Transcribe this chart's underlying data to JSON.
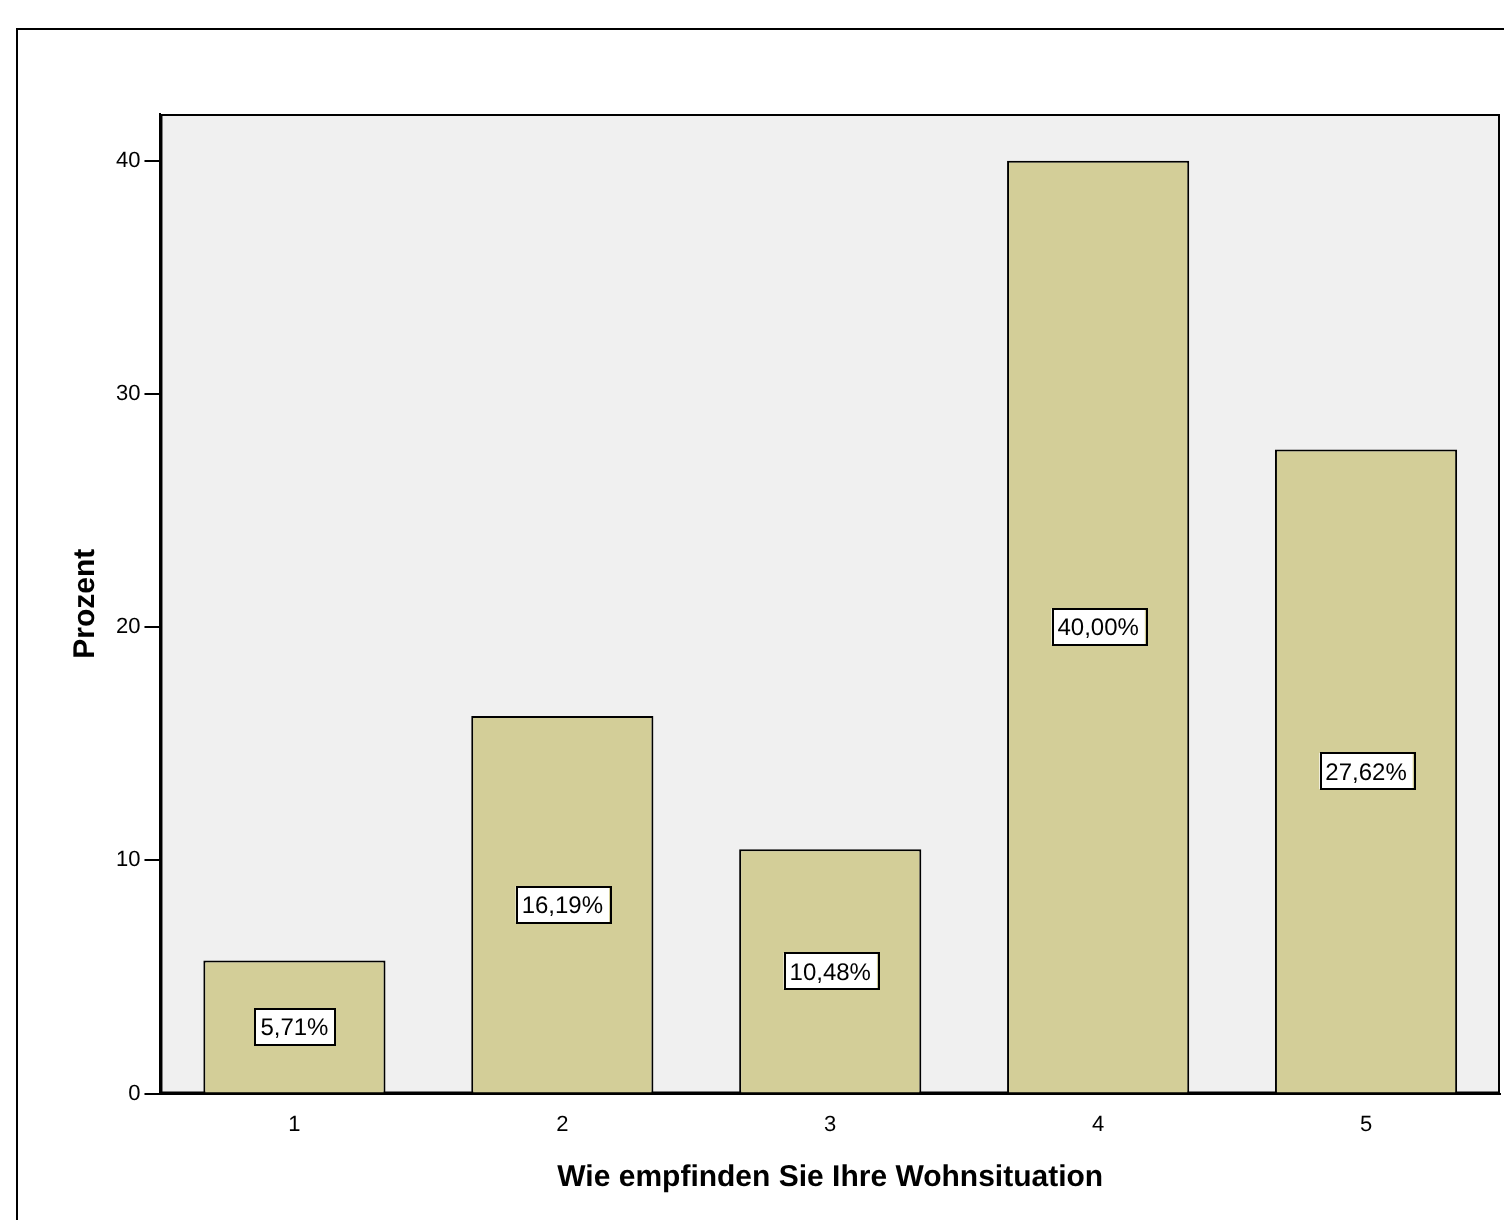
{
  "chart_data": {
    "type": "bar",
    "xlabel": "Wie empfinden Sie Ihre Wohnsituation",
    "ylabel": "Prozent",
    "categories": [
      "1",
      "2",
      "3",
      "4",
      "5"
    ],
    "values": [
      5.71,
      16.19,
      10.48,
      40.0,
      27.62
    ],
    "value_labels": [
      "5,71%",
      "16,19%",
      "10,48%",
      "40,00%",
      "27,62%"
    ],
    "color": "#d3ce98",
    "ylim": [
      0,
      42
    ],
    "yticks": [
      0,
      10,
      20,
      30,
      40
    ],
    "grid": false,
    "legend": false
  }
}
